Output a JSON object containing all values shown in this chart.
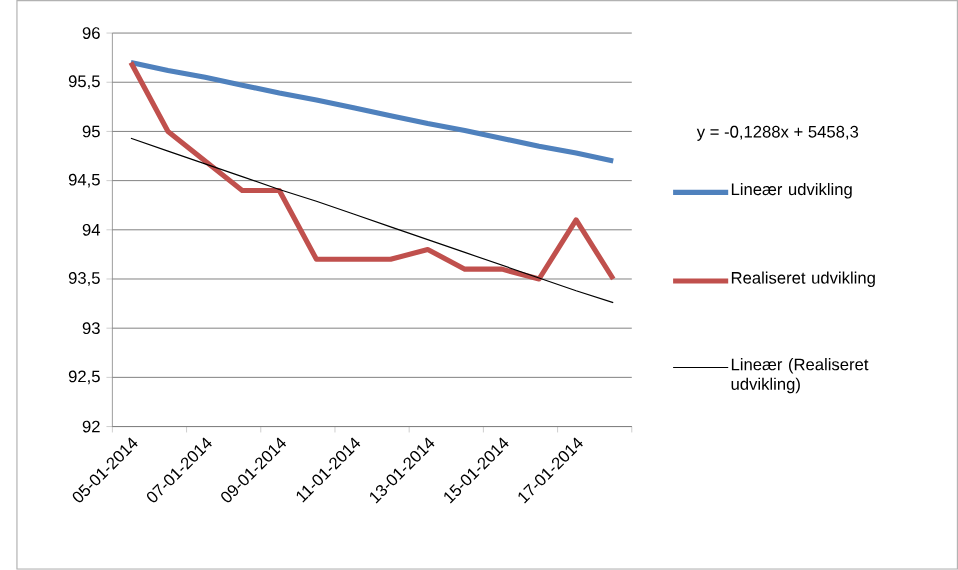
{
  "chart_data": {
    "type": "line",
    "categories": [
      "05-01-2014",
      null,
      "07-01-2014",
      null,
      "09-01-2014",
      null,
      "11-01-2014",
      null,
      "13-01-2014",
      null,
      "15-01-2014",
      null,
      "17-01-2014",
      null
    ],
    "series": [
      {
        "name": "Lineær udvikling",
        "color": "#4f81bd",
        "values": [
          95.7,
          95.62,
          95.55,
          95.47,
          95.39,
          95.32,
          95.24,
          95.16,
          95.08,
          95.01,
          94.93,
          94.85,
          94.78,
          94.7
        ]
      },
      {
        "name": "Realiseret udvikling",
        "color": "#c0504d",
        "values": [
          95.7,
          95.0,
          94.7,
          94.4,
          94.4,
          93.7,
          93.7,
          93.7,
          93.8,
          93.6,
          93.6,
          93.5,
          94.1,
          93.5
        ]
      },
      {
        "name": "Lineær (Realiseret udvikling)",
        "color": "#000000",
        "values": [
          94.93,
          94.8,
          94.67,
          94.54,
          94.41,
          94.29,
          94.16,
          94.03,
          93.9,
          93.77,
          93.64,
          93.51,
          93.38,
          93.26
        ]
      }
    ],
    "ylim": [
      92,
      96
    ],
    "yticks": [
      92,
      {
        "value": 92.5,
        "label": "92,5"
      },
      93,
      {
        "value": 93.5,
        "label": "93,5"
      },
      94,
      {
        "value": 94.5,
        "label": "94,5"
      },
      95,
      {
        "value": 95.5,
        "label": "95,5"
      },
      96
    ],
    "grid": "y",
    "legend": "right",
    "marker": "none",
    "annotations": [
      "y = -0,1288x + 5458,3"
    ]
  }
}
